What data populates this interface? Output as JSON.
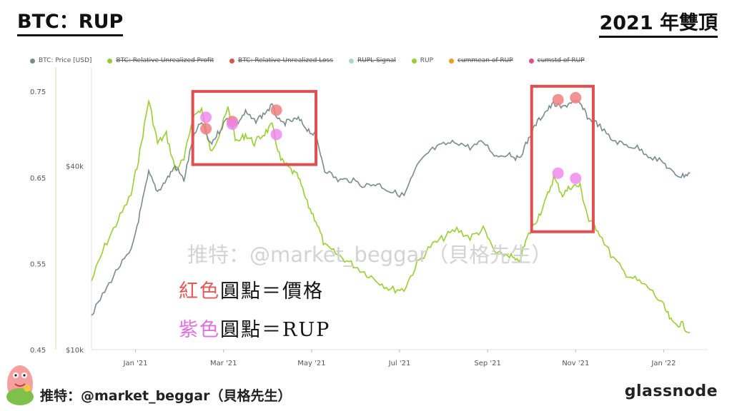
{
  "header": {
    "title_left": "BTC：RUP",
    "title_right": "2021 年雙頂"
  },
  "legend": [
    {
      "label": "BTC: Price [USD]",
      "color": "#7a8b8b",
      "active": true
    },
    {
      "label": "BTC: Relative Unrealized Profit",
      "color": "#9acd32",
      "active": false
    },
    {
      "label": "BTC: Relative Unrealized Loss",
      "color": "#e05050",
      "active": false
    },
    {
      "label": "RUPL Signal",
      "color": "#a8d8c8",
      "active": false
    },
    {
      "label": "RUP",
      "color": "#9acd32",
      "active": true
    },
    {
      "label": "cummean of RUP",
      "color": "#e8a020",
      "active": false
    },
    {
      "label": "cumstd of RUP",
      "color": "#e05080",
      "active": false
    }
  ],
  "watermark": "推特：@market_beggar（貝格先生）",
  "annotations": {
    "red_prefix": "紅色",
    "red_suffix": "圓點＝價格",
    "pink_prefix": "紫色",
    "pink_suffix": "圓點＝RUP"
  },
  "footer": {
    "handle": "推特：@market_beggar（貝格先生）",
    "brand": "glassnode"
  },
  "colors": {
    "price_line": "#7a8b8b",
    "rup_line": "#9acd32",
    "highlight_box": "#e05050",
    "price_marker": "#f08080",
    "rup_marker": "#ee82ee"
  },
  "chart_data": {
    "type": "line",
    "x_axis": {
      "ticks": [
        "Jan '21",
        "Mar '21",
        "May '21",
        "Jul '21",
        "Sep '21",
        "Nov '21",
        "Jan '22"
      ],
      "tick_months": [
        1,
        3,
        5,
        7,
        9,
        11,
        13
      ],
      "range_months": [
        0,
        14
      ]
    },
    "y_left": {
      "ticks": [
        0.75,
        0.65,
        0.55,
        0.45
      ],
      "range": [
        0.45,
        0.77
      ]
    },
    "y_right": {
      "scale": "log",
      "ticks": [
        {
          "label": "$40k",
          "value": 40000
        },
        {
          "label": "$10k",
          "value": 10000
        }
      ],
      "range": [
        10000,
        80000
      ]
    },
    "series": [
      {
        "name": "BTC: Price [USD]",
        "axis": "right",
        "points": [
          [
            0.0,
            13000
          ],
          [
            0.3,
            15500
          ],
          [
            0.6,
            18500
          ],
          [
            0.9,
            21000
          ],
          [
            1.1,
            28000
          ],
          [
            1.3,
            38000
          ],
          [
            1.5,
            33000
          ],
          [
            1.7,
            36000
          ],
          [
            1.9,
            40000
          ],
          [
            2.1,
            36000
          ],
          [
            2.3,
            49000
          ],
          [
            2.5,
            56000
          ],
          [
            2.7,
            47000
          ],
          [
            2.9,
            52000
          ],
          [
            3.1,
            58000
          ],
          [
            3.3,
            55000
          ],
          [
            3.5,
            60000
          ],
          [
            3.7,
            56000
          ],
          [
            3.9,
            59000
          ],
          [
            4.1,
            63000
          ],
          [
            4.3,
            55000
          ],
          [
            4.5,
            56000
          ],
          [
            4.7,
            57000
          ],
          [
            4.9,
            53000
          ],
          [
            5.1,
            50000
          ],
          [
            5.3,
            39000
          ],
          [
            5.6,
            36000
          ],
          [
            5.9,
            36000
          ],
          [
            6.2,
            34500
          ],
          [
            6.5,
            35000
          ],
          [
            6.8,
            33000
          ],
          [
            7.1,
            32000
          ],
          [
            7.4,
            40000
          ],
          [
            7.7,
            45000
          ],
          [
            8.0,
            47000
          ],
          [
            8.3,
            48000
          ],
          [
            8.6,
            46000
          ],
          [
            8.9,
            48000
          ],
          [
            9.2,
            43000
          ],
          [
            9.5,
            44000
          ],
          [
            9.7,
            42000
          ],
          [
            9.9,
            48000
          ],
          [
            10.1,
            55000
          ],
          [
            10.3,
            60000
          ],
          [
            10.5,
            64000
          ],
          [
            10.7,
            62000
          ],
          [
            10.9,
            65000
          ],
          [
            11.1,
            64000
          ],
          [
            11.3,
            57000
          ],
          [
            11.5,
            55000
          ],
          [
            11.8,
            49000
          ],
          [
            12.1,
            47000
          ],
          [
            12.4,
            46000
          ],
          [
            12.7,
            43000
          ],
          [
            13.0,
            41000
          ],
          [
            13.2,
            38000
          ],
          [
            13.4,
            37000
          ],
          [
            13.6,
            38000
          ]
        ]
      },
      {
        "name": "RUP",
        "axis": "left",
        "points": [
          [
            0.0,
            0.53
          ],
          [
            0.3,
            0.57
          ],
          [
            0.6,
            0.6
          ],
          [
            0.9,
            0.63
          ],
          [
            1.1,
            0.68
          ],
          [
            1.3,
            0.74
          ],
          [
            1.5,
            0.69
          ],
          [
            1.7,
            0.7
          ],
          [
            1.9,
            0.66
          ],
          [
            2.1,
            0.67
          ],
          [
            2.3,
            0.72
          ],
          [
            2.5,
            0.73
          ],
          [
            2.7,
            0.68
          ],
          [
            2.9,
            0.7
          ],
          [
            3.1,
            0.73
          ],
          [
            3.3,
            0.69
          ],
          [
            3.5,
            0.7
          ],
          [
            3.7,
            0.69
          ],
          [
            3.9,
            0.7
          ],
          [
            4.1,
            0.71
          ],
          [
            4.3,
            0.67
          ],
          [
            4.5,
            0.66
          ],
          [
            4.7,
            0.65
          ],
          [
            4.9,
            0.62
          ],
          [
            5.1,
            0.6
          ],
          [
            5.3,
            0.57
          ],
          [
            5.6,
            0.56
          ],
          [
            5.9,
            0.55
          ],
          [
            6.2,
            0.54
          ],
          [
            6.5,
            0.53
          ],
          [
            6.8,
            0.52
          ],
          [
            7.1,
            0.52
          ],
          [
            7.4,
            0.55
          ],
          [
            7.7,
            0.57
          ],
          [
            8.0,
            0.58
          ],
          [
            8.3,
            0.59
          ],
          [
            8.6,
            0.58
          ],
          [
            8.9,
            0.59
          ],
          [
            9.2,
            0.56
          ],
          [
            9.5,
            0.56
          ],
          [
            9.7,
            0.55
          ],
          [
            9.9,
            0.58
          ],
          [
            10.1,
            0.6
          ],
          [
            10.3,
            0.62
          ],
          [
            10.5,
            0.65
          ],
          [
            10.7,
            0.63
          ],
          [
            10.9,
            0.64
          ],
          [
            11.1,
            0.64
          ],
          [
            11.3,
            0.6
          ],
          [
            11.5,
            0.59
          ],
          [
            11.8,
            0.56
          ],
          [
            12.1,
            0.54
          ],
          [
            12.4,
            0.53
          ],
          [
            12.7,
            0.52
          ],
          [
            13.0,
            0.5
          ],
          [
            13.2,
            0.48
          ],
          [
            13.4,
            0.48
          ],
          [
            13.6,
            0.47
          ]
        ]
      }
    ],
    "highlight_boxes": [
      {
        "x_range": [
          2.3,
          5.1
        ],
        "y_range": [
          0.665,
          0.75
        ]
      },
      {
        "x_range": [
          10.0,
          11.4
        ],
        "y_range": [
          0.587,
          0.756
        ]
      }
    ],
    "price_markers": [
      [
        2.6,
        53000
      ],
      [
        3.2,
        56000
      ],
      [
        4.2,
        61000
      ],
      [
        10.6,
        66000
      ],
      [
        11.0,
        67000
      ]
    ],
    "rup_markers": [
      [
        2.6,
        0.72
      ],
      [
        3.2,
        0.712
      ],
      [
        4.2,
        0.7
      ],
      [
        10.6,
        0.655
      ],
      [
        11.0,
        0.649
      ]
    ]
  }
}
